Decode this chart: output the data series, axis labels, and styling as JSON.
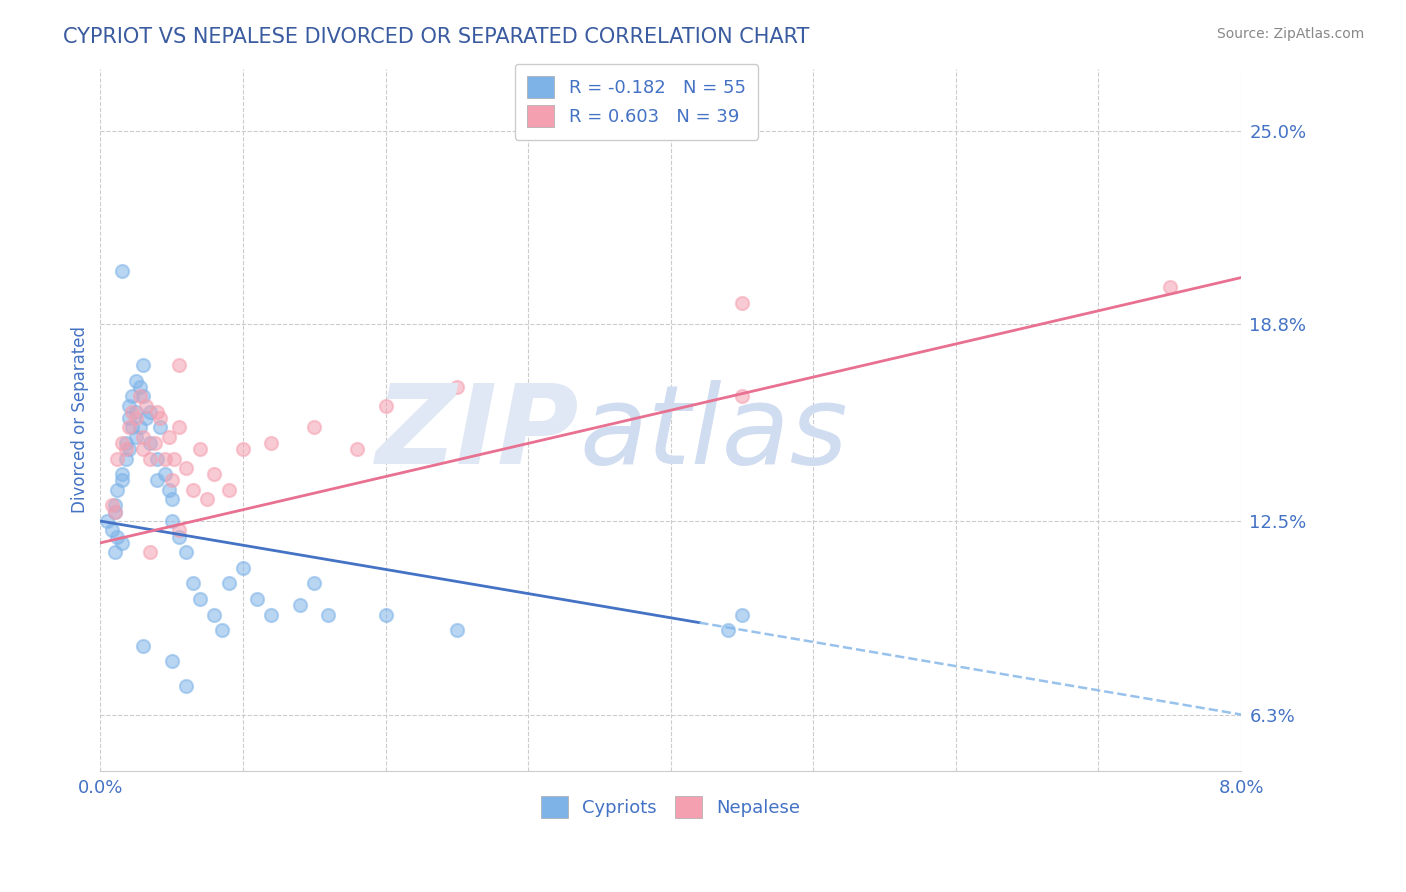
{
  "title": "CYPRIOT VS NEPALESE DIVORCED OR SEPARATED CORRELATION CHART",
  "source": "Source: ZipAtlas.com",
  "ylabel": "Divorced or Separated",
  "xlim": [
    0.0,
    8.0
  ],
  "ylim": [
    4.5,
    27.0
  ],
  "yticks": [
    6.3,
    12.5,
    18.8,
    25.0
  ],
  "ytick_labels": [
    "6.3%",
    "12.5%",
    "18.8%",
    "25.0%"
  ],
  "xticks": [
    0.0,
    1.0,
    2.0,
    3.0,
    4.0,
    5.0,
    6.0,
    7.0,
    8.0
  ],
  "legend_entry1": "R = -0.182   N = 55",
  "legend_entry2": "R = 0.603   N = 39",
  "legend_label1": "Cypriots",
  "legend_label2": "Nepalese",
  "cypriot_color": "#7EB3E8",
  "nepalese_color": "#F4A0B0",
  "title_color": "#3A5BA0",
  "axis_label_color": "#4472C4",
  "tick_color": "#4472C4",
  "background_color": "#FFFFFF",
  "grid_color": "#CCCCCC",
  "cypriot_line_x0": 0.0,
  "cypriot_line_y0": 12.5,
  "cypriot_line_x1": 8.0,
  "cypriot_line_y1": 6.3,
  "cypriot_solid_end_x": 4.2,
  "nepalese_line_x0": 0.0,
  "nepalese_line_y0": 11.8,
  "nepalese_line_x1": 8.0,
  "nepalese_line_y1": 20.3,
  "cypriot_scatter_x": [
    0.05,
    0.08,
    0.1,
    0.1,
    0.1,
    0.12,
    0.12,
    0.15,
    0.15,
    0.15,
    0.18,
    0.18,
    0.2,
    0.2,
    0.2,
    0.22,
    0.22,
    0.25,
    0.25,
    0.25,
    0.28,
    0.28,
    0.3,
    0.3,
    0.32,
    0.35,
    0.35,
    0.4,
    0.4,
    0.42,
    0.45,
    0.48,
    0.5,
    0.5,
    0.55,
    0.6,
    0.65,
    0.7,
    0.8,
    0.85,
    0.9,
    1.0,
    1.1,
    1.2,
    1.4,
    1.5,
    1.6,
    2.0,
    2.5,
    4.4,
    4.5,
    0.15,
    0.3,
    0.5,
    0.6
  ],
  "cypriot_scatter_y": [
    12.5,
    12.2,
    12.8,
    11.5,
    13.0,
    13.5,
    12.0,
    14.0,
    13.8,
    11.8,
    15.0,
    14.5,
    16.2,
    15.8,
    14.8,
    16.5,
    15.5,
    17.0,
    16.0,
    15.2,
    16.8,
    15.5,
    17.5,
    16.5,
    15.8,
    16.0,
    15.0,
    14.5,
    13.8,
    15.5,
    14.0,
    13.5,
    13.2,
    12.5,
    12.0,
    11.5,
    10.5,
    10.0,
    9.5,
    9.0,
    10.5,
    11.0,
    10.0,
    9.5,
    9.8,
    10.5,
    9.5,
    9.5,
    9.0,
    9.0,
    9.5,
    20.5,
    8.5,
    8.0,
    7.2
  ],
  "nepalese_scatter_x": [
    0.08,
    0.1,
    0.12,
    0.15,
    0.18,
    0.2,
    0.22,
    0.25,
    0.28,
    0.3,
    0.3,
    0.32,
    0.35,
    0.38,
    0.4,
    0.42,
    0.45,
    0.48,
    0.5,
    0.52,
    0.55,
    0.6,
    0.65,
    0.7,
    0.75,
    0.8,
    0.9,
    1.0,
    1.2,
    1.5,
    1.8,
    2.0,
    2.5,
    4.5,
    4.5,
    0.35,
    0.55,
    7.5,
    0.55
  ],
  "nepalese_scatter_y": [
    13.0,
    12.8,
    14.5,
    15.0,
    14.8,
    15.5,
    16.0,
    15.8,
    16.5,
    15.2,
    14.8,
    16.2,
    14.5,
    15.0,
    16.0,
    15.8,
    14.5,
    15.2,
    13.8,
    14.5,
    15.5,
    14.2,
    13.5,
    14.8,
    13.2,
    14.0,
    13.5,
    14.8,
    15.0,
    15.5,
    14.8,
    16.2,
    16.8,
    19.5,
    16.5,
    11.5,
    12.2,
    20.0,
    17.5
  ]
}
